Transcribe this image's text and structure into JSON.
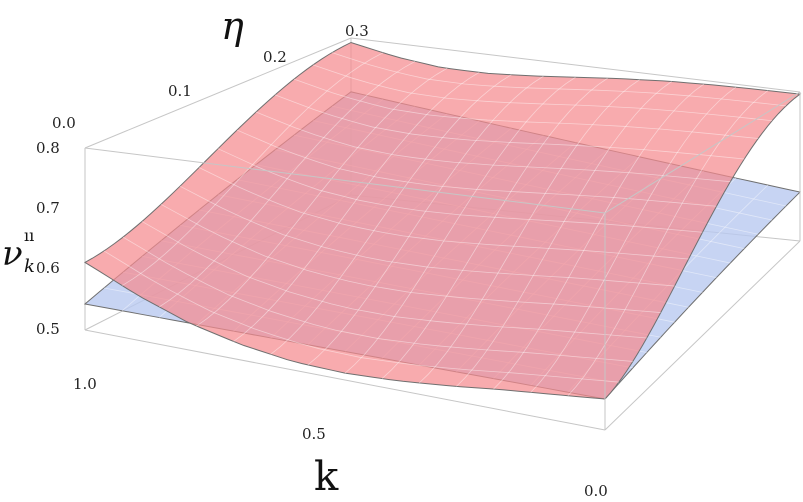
{
  "chart_data": {
    "type": "surface3d",
    "x_axis": {
      "label": "k",
      "ticks": [
        "1.0",
        "0.5",
        "0.0"
      ],
      "range": [
        0,
        1
      ]
    },
    "y_axis": {
      "label": "η",
      "ticks": [
        "0.0",
        "0.1",
        "0.2",
        "0.3"
      ],
      "range": [
        0,
        0.3
      ]
    },
    "z_axis": {
      "label_main": "ν",
      "label_sub": "k",
      "label_sup": "ıı",
      "ticks": [
        "0.5",
        "0.6",
        "0.7",
        "0.8"
      ],
      "range": [
        0.45,
        0.8
      ]
    },
    "grid": false,
    "surfaces": [
      {
        "color": "#f58a8f",
        "description_formula": "pink curved surface",
        "corner_values": {
          "k1_eta0": 0.58,
          "k0_eta0": 0.5,
          "k1_eta03": 0.79,
          "k0_eta03": 0.795
        },
        "front_edge_k": [
          1.0,
          0.9,
          0.8,
          0.7,
          0.6,
          0.5,
          0.4,
          0.3,
          0.2,
          0.1,
          0.0
        ],
        "front_edge_values": [
          0.58,
          0.535,
          0.5,
          0.478,
          0.465,
          0.462,
          0.466,
          0.474,
          0.484,
          0.492,
          0.5
        ],
        "back_edge_values": [
          0.79,
          0.77,
          0.758,
          0.757,
          0.763,
          0.772,
          0.781,
          0.788,
          0.792,
          0.794,
          0.795
        ]
      },
      {
        "color": "#b7c8ef",
        "description_formula": "blue plane",
        "corner_values": {
          "k1_eta0": 0.5,
          "k0_eta0": 0.5,
          "k1_eta03": 0.68,
          "k0_eta03": 0.565
        }
      }
    ]
  }
}
